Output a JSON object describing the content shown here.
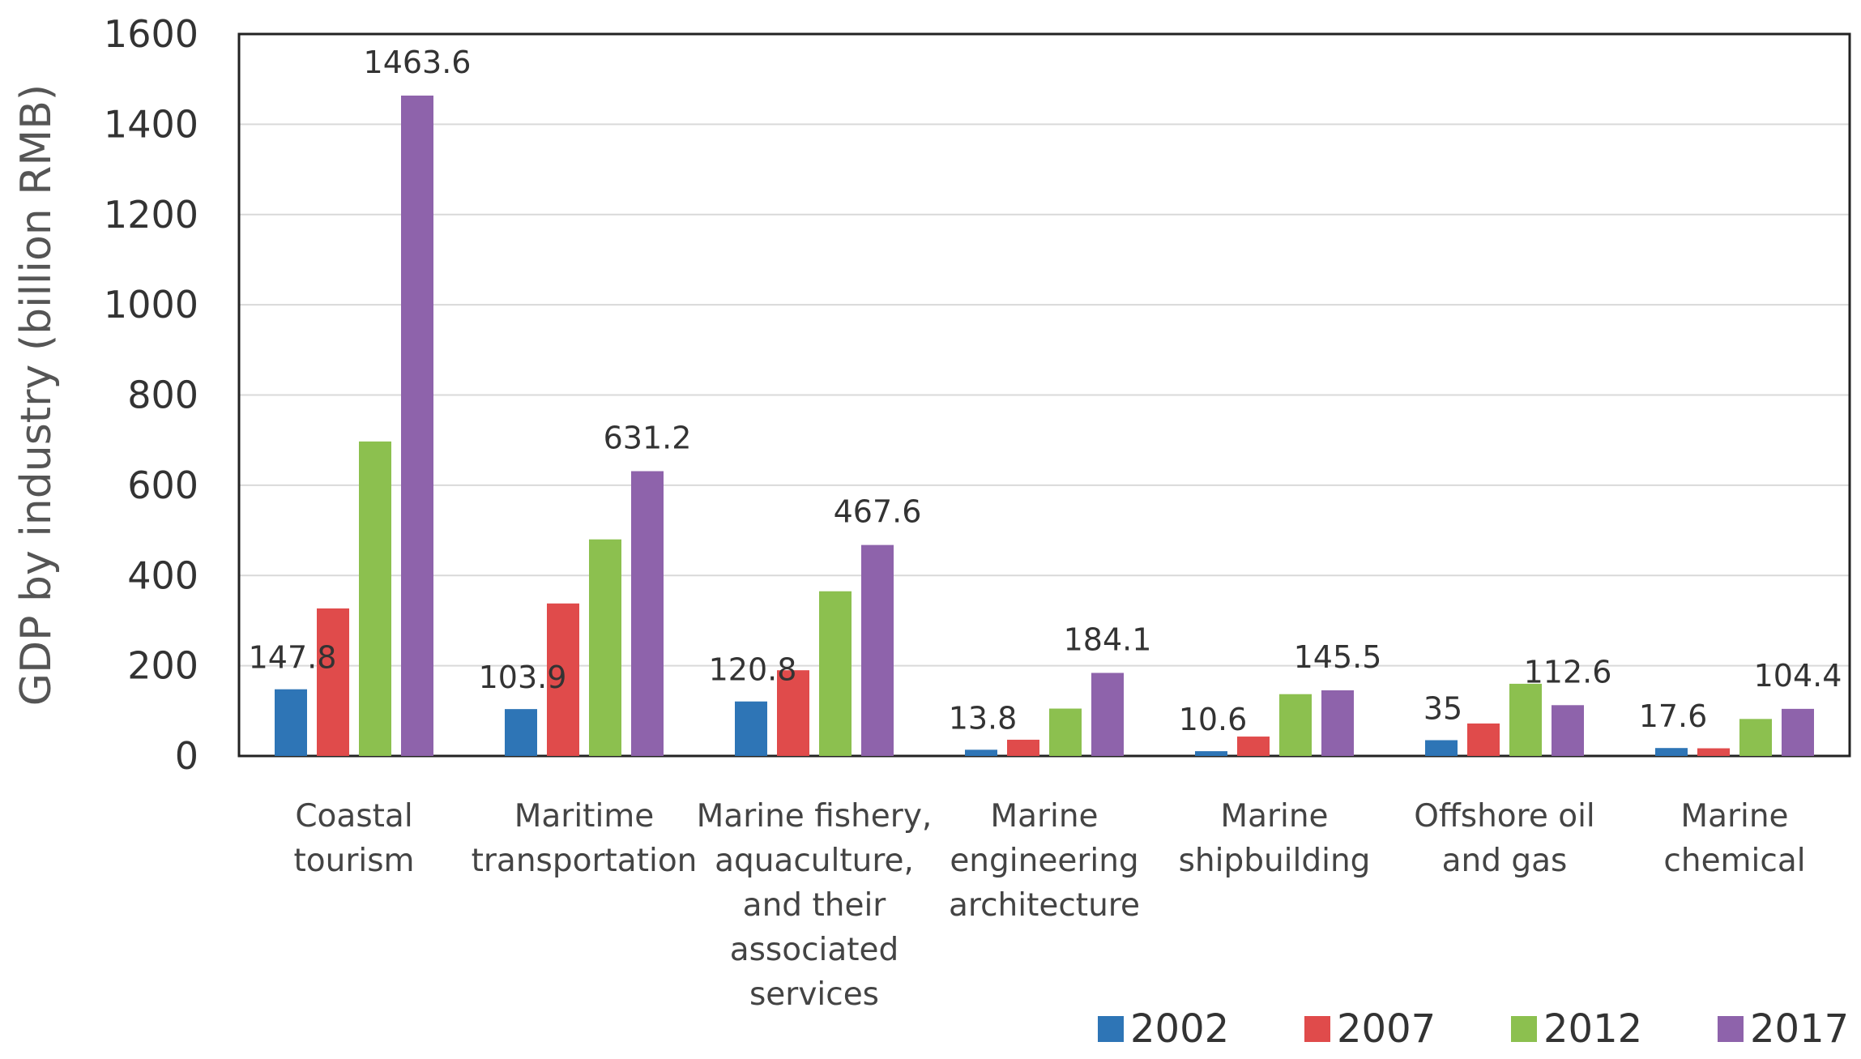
{
  "chart_data": {
    "type": "bar",
    "title": "",
    "xlabel": "",
    "ylabel": "GDP by industry (billion RMB)",
    "ylim": [
      0,
      1600
    ],
    "yticks": [
      0,
      200,
      400,
      600,
      800,
      1000,
      1200,
      1400,
      1600
    ],
    "grid": true,
    "legend_position": "bottom-right",
    "categories": [
      [
        "Coastal",
        "tourism"
      ],
      [
        "Maritime",
        "transportation"
      ],
      [
        "Marine fishery,",
        "aquaculture,",
        "and their",
        "associated",
        "services"
      ],
      [
        "Marine",
        "engineering",
        "architecture"
      ],
      [
        "Marine",
        "shipbuilding"
      ],
      [
        "Offshore oil",
        "and gas"
      ],
      [
        "Marine",
        "chemical"
      ]
    ],
    "series": [
      {
        "name": "2002",
        "color": "#2E75B6",
        "values": [
          147.8,
          103.9,
          120.8,
          13.8,
          10.6,
          35,
          17.6
        ],
        "labels": [
          "147.8",
          "103.9",
          "120.8",
          "13.8",
          "10.6",
          "35",
          "17.6"
        ]
      },
      {
        "name": "2007",
        "color": "#E04B4B",
        "values": [
          327,
          338,
          190,
          36,
          43,
          72,
          17
        ],
        "labels": []
      },
      {
        "name": "2012",
        "color": "#8CC04F",
        "values": [
          697,
          480,
          365,
          105,
          137,
          160,
          82
        ],
        "labels": []
      },
      {
        "name": "2017",
        "color": "#8E63AB",
        "values": [
          1463.6,
          631.2,
          467.6,
          184.1,
          145.5,
          112.6,
          104.4
        ],
        "labels": [
          "1463.6",
          "631.2",
          "467.6",
          "184.1",
          "145.5",
          "112.6",
          "104.4"
        ]
      }
    ]
  }
}
